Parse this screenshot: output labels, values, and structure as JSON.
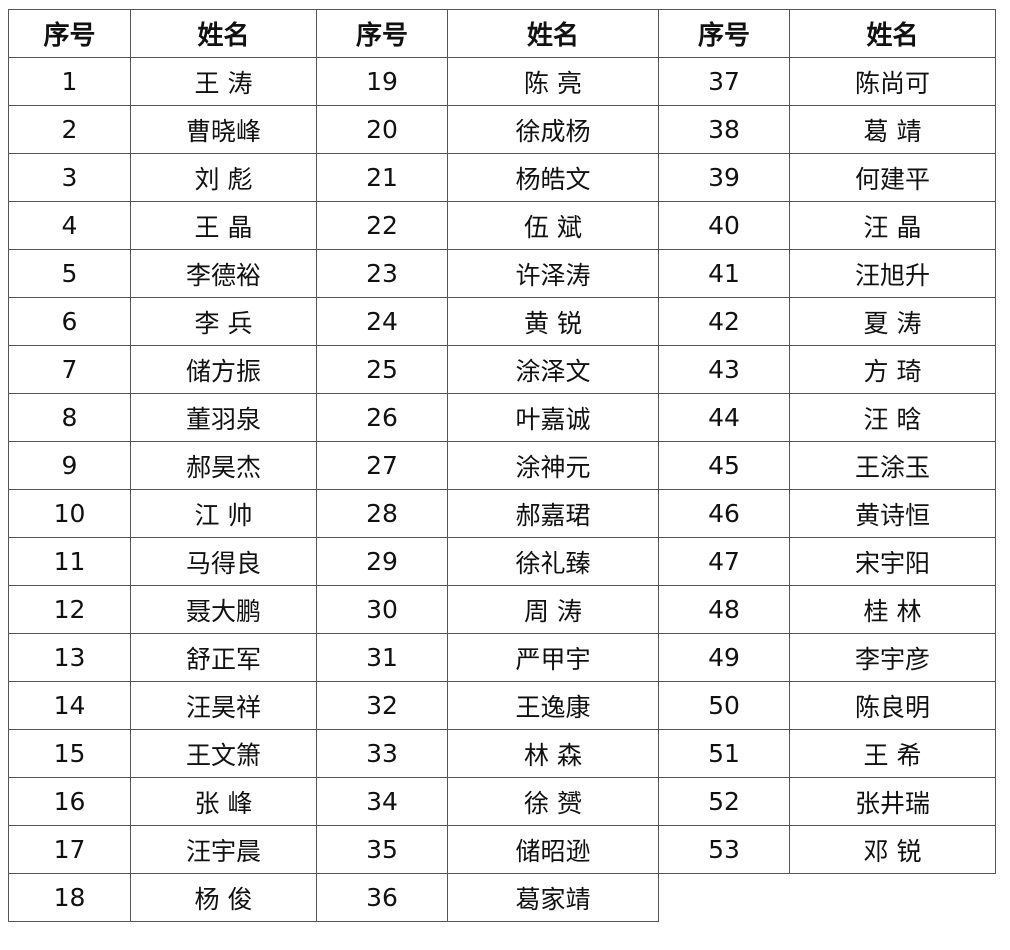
{
  "headers": [
    "序号",
    "姓名",
    "序号",
    "姓名",
    "序号",
    "姓名"
  ],
  "groups": [
    [
      [
        "1",
        "王 涛"
      ],
      [
        "2",
        "曹晓峰"
      ],
      [
        "3",
        "刘 彪"
      ],
      [
        "4",
        "王 晶"
      ],
      [
        "5",
        "李德裕"
      ],
      [
        "6",
        "李 兵"
      ],
      [
        "7",
        "储方振"
      ],
      [
        "8",
        "董羽泉"
      ],
      [
        "9",
        "郝昊杰"
      ],
      [
        "10",
        "江 帅"
      ],
      [
        "11",
        "马得良"
      ],
      [
        "12",
        "聂大鹏"
      ],
      [
        "13",
        "舒正军"
      ],
      [
        "14",
        "汪昊祥"
      ],
      [
        "15",
        "王文箫"
      ],
      [
        "16",
        "张 峰"
      ],
      [
        "17",
        "汪宇晨"
      ],
      [
        "18",
        "杨 俊"
      ]
    ],
    [
      [
        "19",
        "陈 亮"
      ],
      [
        "20",
        "徐成杨"
      ],
      [
        "21",
        "杨皓文"
      ],
      [
        "22",
        "伍 斌"
      ],
      [
        "23",
        "许泽涛"
      ],
      [
        "24",
        "黄 锐"
      ],
      [
        "25",
        "涂泽文"
      ],
      [
        "26",
        "叶嘉诚"
      ],
      [
        "27",
        "涂神元"
      ],
      [
        "28",
        "郝嘉珺"
      ],
      [
        "29",
        "徐礼臻"
      ],
      [
        "30",
        "周 涛"
      ],
      [
        "31",
        "严甲宇"
      ],
      [
        "32",
        "王逸康"
      ],
      [
        "33",
        "林 森"
      ],
      [
        "34",
        "徐 赟"
      ],
      [
        "35",
        "储昭逊"
      ],
      [
        "36",
        "葛家靖"
      ]
    ],
    [
      [
        "37",
        "陈尚可"
      ],
      [
        "38",
        "葛 靖"
      ],
      [
        "39",
        "何建平"
      ],
      [
        "40",
        "汪 晶"
      ],
      [
        "41",
        "汪旭升"
      ],
      [
        "42",
        "夏 涛"
      ],
      [
        "43",
        "方 琦"
      ],
      [
        "44",
        "汪 晗"
      ],
      [
        "45",
        "王涂玉"
      ],
      [
        "46",
        "黄诗恒"
      ],
      [
        "47",
        "宋宇阳"
      ],
      [
        "48",
        "桂 林"
      ],
      [
        "49",
        "李宇彦"
      ],
      [
        "50",
        "陈良明"
      ],
      [
        "51",
        "王 希"
      ],
      [
        "52",
        "张井瑞"
      ],
      [
        "53",
        "邓 锐"
      ]
    ]
  ]
}
